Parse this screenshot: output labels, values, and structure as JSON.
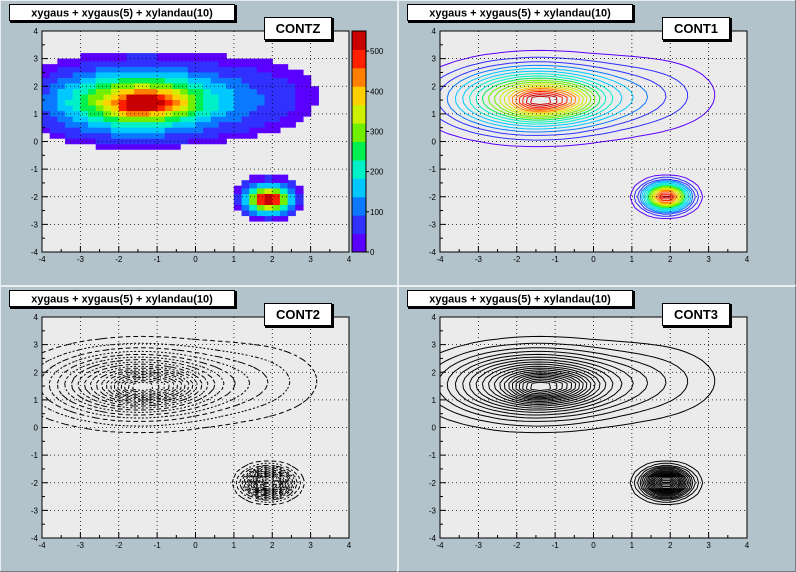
{
  "chart_data": [
    {
      "type": "heatmap",
      "title": "xygaus + xygaus(5) + xylandau(10)",
      "draw_option": "CONTZ",
      "xlim": [
        -4,
        4
      ],
      "ylim": [
        -4,
        4
      ],
      "x_ticks": [
        -4,
        -3,
        -2,
        -1,
        0,
        1,
        2,
        3,
        4
      ],
      "y_ticks": [
        -4,
        -3,
        -2,
        -1,
        0,
        1,
        2,
        3,
        4
      ],
      "z_ticks": [
        0,
        100,
        200,
        300,
        400,
        500
      ],
      "zlim": [
        0,
        550
      ],
      "grid": true,
      "peaks": [
        {
          "x": -1.5,
          "y": 1.5,
          "z": 550
        },
        {
          "x": 1.9,
          "y": -2.0,
          "z": 560
        }
      ],
      "colors": [
        "#5a00ff",
        "#3030ff",
        "#0a78ff",
        "#00c8ff",
        "#00f0c8",
        "#00f050",
        "#70f000",
        "#ccf000",
        "#ffd000",
        "#ff8000",
        "#ff2000",
        "#c80000"
      ]
    },
    {
      "type": "heatmap",
      "title": "xygaus + xygaus(5) + xylandau(10)",
      "draw_option": "CONT1",
      "xlim": [
        -4,
        4
      ],
      "ylim": [
        -4,
        4
      ],
      "x_ticks": [
        -4,
        -3,
        -2,
        -1,
        0,
        1,
        2,
        3,
        4
      ],
      "y_ticks": [
        -4,
        -3,
        -2,
        -1,
        0,
        1,
        2,
        3,
        4
      ],
      "grid": true,
      "peaks": [
        {
          "x": -1.5,
          "y": 1.5,
          "z": 550
        },
        {
          "x": 1.9,
          "y": -2.0,
          "z": 560
        }
      ]
    },
    {
      "type": "heatmap",
      "title": "xygaus + xygaus(5) + xylandau(10)",
      "draw_option": "CONT2",
      "xlim": [
        -4,
        4
      ],
      "ylim": [
        -4,
        4
      ],
      "x_ticks": [
        -4,
        -3,
        -2,
        -1,
        0,
        1,
        2,
        3,
        4
      ],
      "y_ticks": [
        -4,
        -3,
        -2,
        -1,
        0,
        1,
        2,
        3,
        4
      ],
      "grid": true,
      "peaks": [
        {
          "x": -1.5,
          "y": 1.5,
          "z": 550
        },
        {
          "x": 1.9,
          "y": -2.0,
          "z": 560
        }
      ]
    },
    {
      "type": "heatmap",
      "title": "xygaus + xygaus(5) + xylandau(10)",
      "draw_option": "CONT3",
      "xlim": [
        -4,
        4
      ],
      "ylim": [
        -4,
        4
      ],
      "x_ticks": [
        -4,
        -3,
        -2,
        -1,
        0,
        1,
        2,
        3,
        4
      ],
      "y_ticks": [
        -4,
        -3,
        -2,
        -1,
        0,
        1,
        2,
        3,
        4
      ],
      "grid": true,
      "peaks": [
        {
          "x": -1.5,
          "y": 1.5,
          "z": 550
        },
        {
          "x": 1.9,
          "y": -2.0,
          "z": 560
        }
      ]
    }
  ],
  "style": {
    "pad_bg": "#b3c3cc",
    "frame_bg": "#ebebeb",
    "label_bg": "#ffffff",
    "ink": "#000000"
  }
}
